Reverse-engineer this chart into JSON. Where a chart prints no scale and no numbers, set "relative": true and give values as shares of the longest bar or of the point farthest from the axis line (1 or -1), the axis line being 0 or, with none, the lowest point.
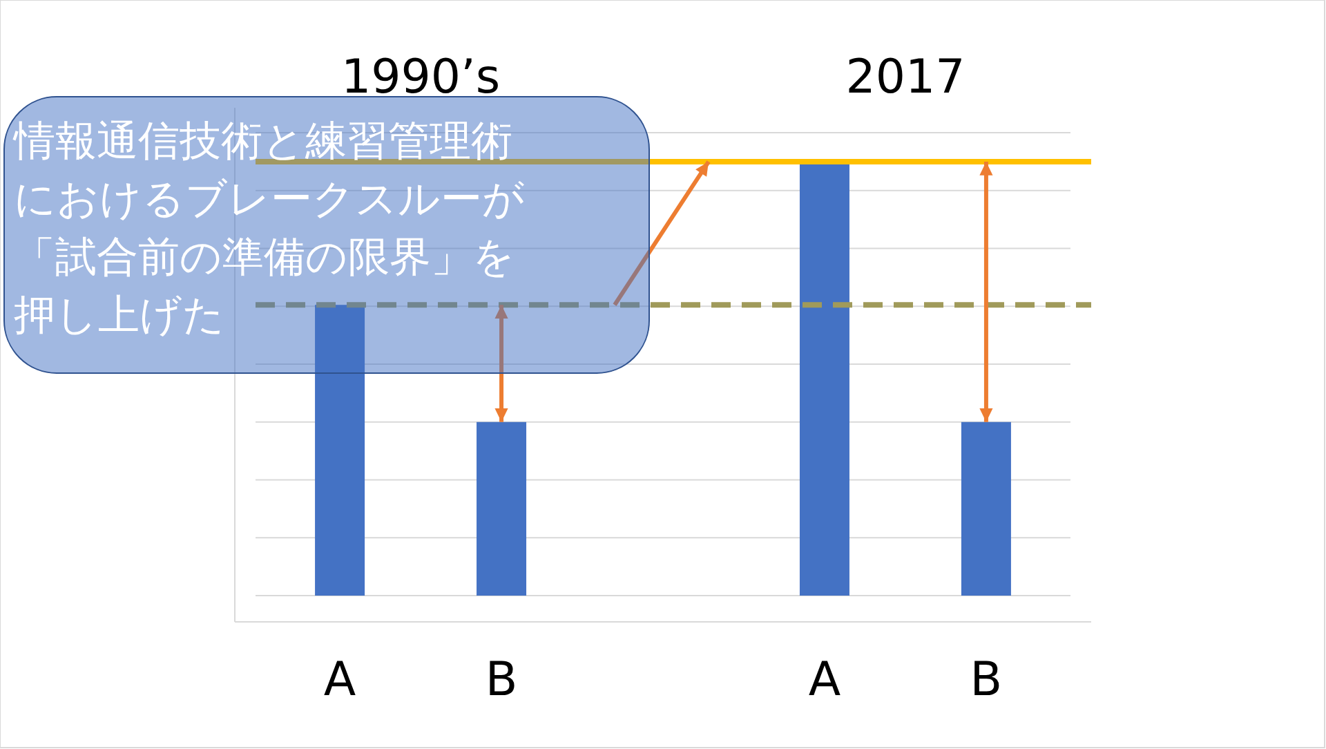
{
  "chart_data": {
    "type": "bar",
    "relative": true,
    "grid": "y",
    "categories": [
      "A",
      "B",
      null,
      "A",
      "B"
    ],
    "values": [
      0.67,
      0.4,
      null,
      1,
      0.4
    ],
    "color": "#4472c4",
    "ref_lines": [
      {
        "axis": "y",
        "value": 0.67,
        "color": "#a09a5a",
        "line_style": "dashed"
      },
      {
        "axis": "y",
        "value": 1,
        "color": "#ffc000",
        "line_style": "solid"
      }
    ],
    "annotations": [
      "1990’s",
      "2017",
      "情報通信技術と練習管理術",
      "におけるブレークスルーが",
      "「試合前の準備の限界」を",
      "押し上げた"
    ]
  }
}
